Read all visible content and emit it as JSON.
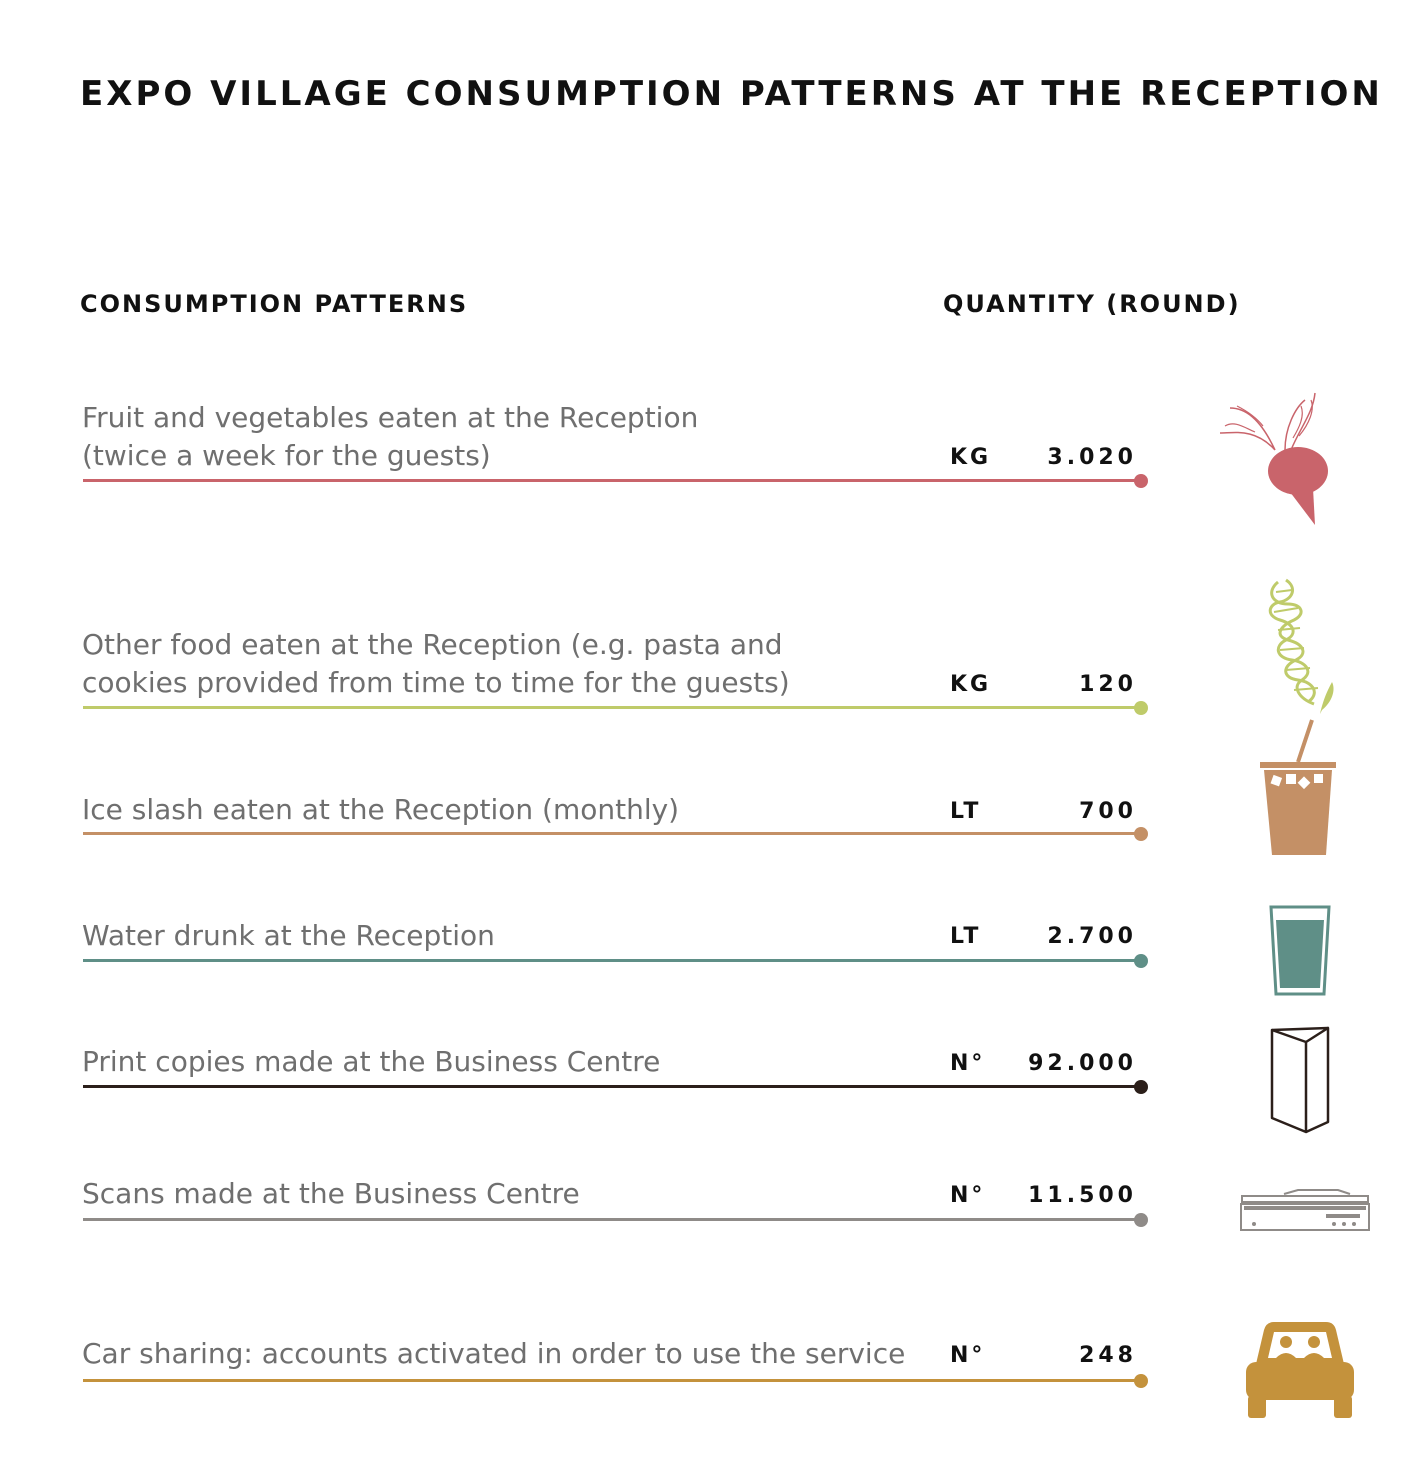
{
  "title": "EXPO VILLAGE CONSUMPTION PATTERNS AT THE RECEPTION",
  "headers": {
    "left": "CONSUMPTION PATTERNS",
    "right": "QUANTITY (ROUND)"
  },
  "rows": [
    {
      "line1": "Fruit and vegetables eaten at the Reception",
      "line2": "(twice a week for the guests)",
      "unit": "KG",
      "value": "3.020",
      "color": "#c9646b",
      "icon": "beetroot-icon"
    },
    {
      "line1": "Other food eaten at the Reception (e.g. pasta and",
      "line2": "cookies provided from time to time for the guests)",
      "unit": "KG",
      "value": "120",
      "color": "#bfcb6a",
      "icon": "pasta-fusilli-icon"
    },
    {
      "line1": "Ice slash eaten at the Reception (monthly)",
      "line2": "",
      "unit": "LT",
      "value": "700",
      "color": "#c49066",
      "icon": "ice-slush-cup-icon"
    },
    {
      "line1": "Water drunk at the Reception",
      "line2": "",
      "unit": "LT",
      "value": "2.700",
      "color": "#5f8f87",
      "icon": "water-glass-icon"
    },
    {
      "line1": "Print copies made at the Business Centre",
      "line2": "",
      "unit": "N°",
      "value": "92.000",
      "color": "#2b1f1a",
      "icon": "folded-paper-icon"
    },
    {
      "line1": "Scans made at the Business Centre",
      "line2": "",
      "unit": "N°",
      "value": "11.500",
      "color": "#8f8b88",
      "icon": "scanner-icon"
    },
    {
      "line1": "Car sharing: accounts activated in order to use the service",
      "line2": "",
      "unit": "N°",
      "value": "248",
      "color": "#c4923c",
      "icon": "car-icon"
    }
  ]
}
